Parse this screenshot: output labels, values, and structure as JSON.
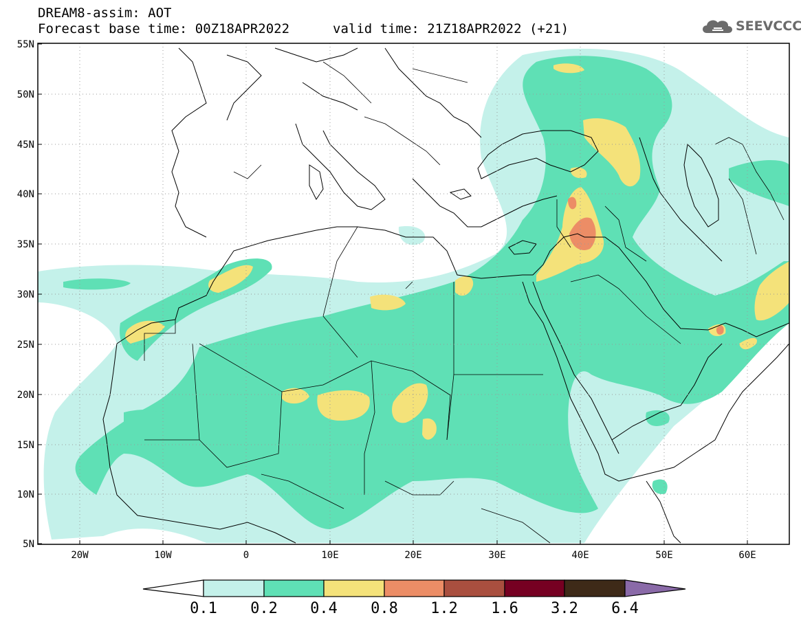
{
  "header": {
    "line1": "DREAM8-assim: AOT",
    "line2": "Forecast base time: 00Z18APR2022",
    "valid": "valid time: 21Z18APR2022 (+21)",
    "logo_text": "SEEVCCC"
  },
  "map": {
    "lon_range": [
      -25,
      65
    ],
    "lat_range": [
      5,
      55
    ],
    "lat_ticks": [
      "5N",
      "10N",
      "15N",
      "20N",
      "25N",
      "30N",
      "35N",
      "40N",
      "45N",
      "50N",
      "55N"
    ],
    "lon_ticks": [
      "20W",
      "10W",
      "0",
      "10E",
      "20E",
      "30E",
      "40E",
      "50E",
      "60E"
    ],
    "grid": "dotted",
    "border_color": "#000000"
  },
  "colorbar": {
    "labels": [
      "0.1",
      "0.2",
      "0.4",
      "0.8",
      "1.2",
      "1.6",
      "3.2",
      "6.4"
    ],
    "colors": [
      "#ffffff",
      "#c4f1ea",
      "#5fe0b5",
      "#f4e27a",
      "#ec8d66",
      "#a94f3f",
      "#760022",
      "#3e2a18",
      "#8a6aa8"
    ]
  }
}
